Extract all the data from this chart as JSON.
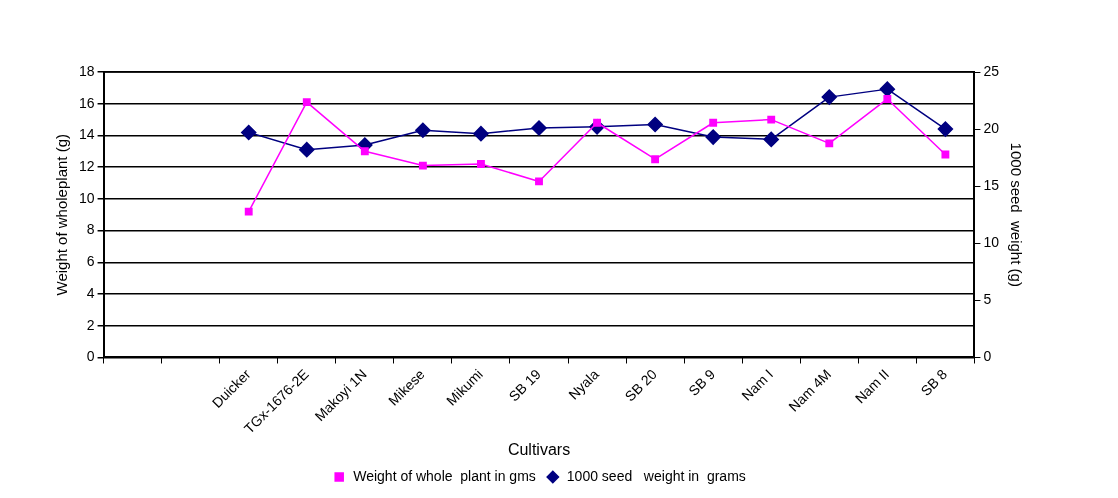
{
  "chart_data": {
    "type": "line",
    "xlabel": "Cultivars",
    "ylabel": "Weight of wholeplant (g)",
    "y2label": "1000 seed  weight (g)",
    "categories": [
      null,
      null,
      "Duicker",
      "TGx-1676-2E",
      "Makoyi 1N",
      "Mikese",
      "Mikumi",
      "SB 19",
      "Nyala",
      "SB 20",
      "SB 9",
      "Nam I",
      "Nam 4M",
      "Nam II",
      "SB 8"
    ],
    "series": [
      {
        "name": "Weight of whole  plant in gms",
        "color": "#ff00ff",
        "marker": "square",
        "values": [
          null,
          null,
          9.2,
          16.1,
          13.0,
          12.1,
          12.2,
          11.1,
          14.8,
          12.5,
          14.8,
          15.0,
          13.5,
          16.3,
          12.8
        ]
      },
      {
        "name": "1000 seed   weight in  grams",
        "color": "#000080",
        "marker": "diamond",
        "axis": "y2",
        "values": [
          null,
          null,
          19.7,
          18.2,
          18.6,
          19.9,
          19.6,
          20.1,
          20.2,
          20.4,
          19.3,
          19.1,
          22.8,
          23.5,
          20.0
        ]
      }
    ],
    "ylim": [
      0,
      18
    ],
    "yticks": [
      0,
      2,
      4,
      6,
      8,
      10,
      12,
      14,
      16,
      18
    ],
    "y2lim": [
      0,
      25
    ],
    "y2ticks": [
      0,
      5,
      10,
      15,
      20,
      25
    ],
    "grid": "y",
    "legend": "bottom",
    "line_style": "solid"
  }
}
